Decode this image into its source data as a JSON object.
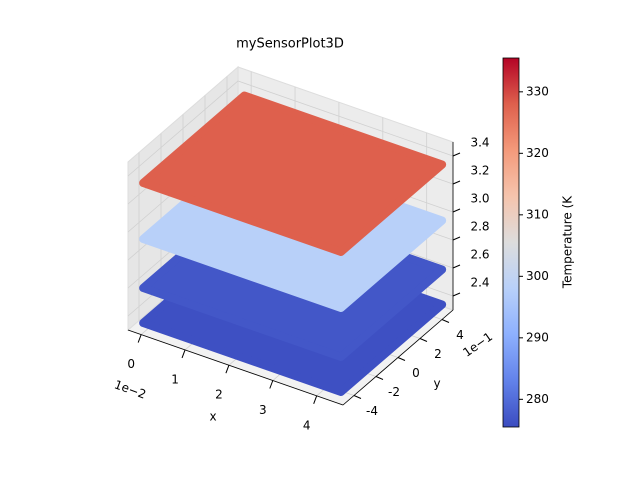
{
  "chart_data": {
    "type": "scatter3d",
    "title": "mySensorPlot3D",
    "x_label": "x",
    "y_label": "y",
    "x_offset_label": "1e−2",
    "y_offset_label": "1e−1",
    "xlim": [
      -0.3,
      4.6
    ],
    "xticks": [
      0,
      1,
      2,
      3,
      4
    ],
    "ylim": [
      -5,
      5
    ],
    "yticks": [
      -4,
      -2,
      0,
      2,
      4
    ],
    "zlim": [
      2.3,
      3.5
    ],
    "zticks": [
      2.4,
      2.6,
      2.8,
      {
        "value": 3,
        "label": "3.0"
      },
      3.2,
      3.4
    ],
    "z": [
      2.35,
      2.6,
      2.95,
      3.35
    ],
    "values": [
      276,
      277,
      298,
      328
    ],
    "colorbar_label": "Temperature (K",
    "clim": [
      275.5,
      335.5
    ],
    "cticks": [
      280,
      290,
      300,
      310,
      320,
      330
    ],
    "colormap": [
      "#3b4cc0",
      "#6282ea",
      "#8db0fe",
      "#b8d0f9",
      "#dddddd",
      "#f5c4ad",
      "#f49a7b",
      "#de604d",
      "#b40426"
    ],
    "grid": true
  }
}
